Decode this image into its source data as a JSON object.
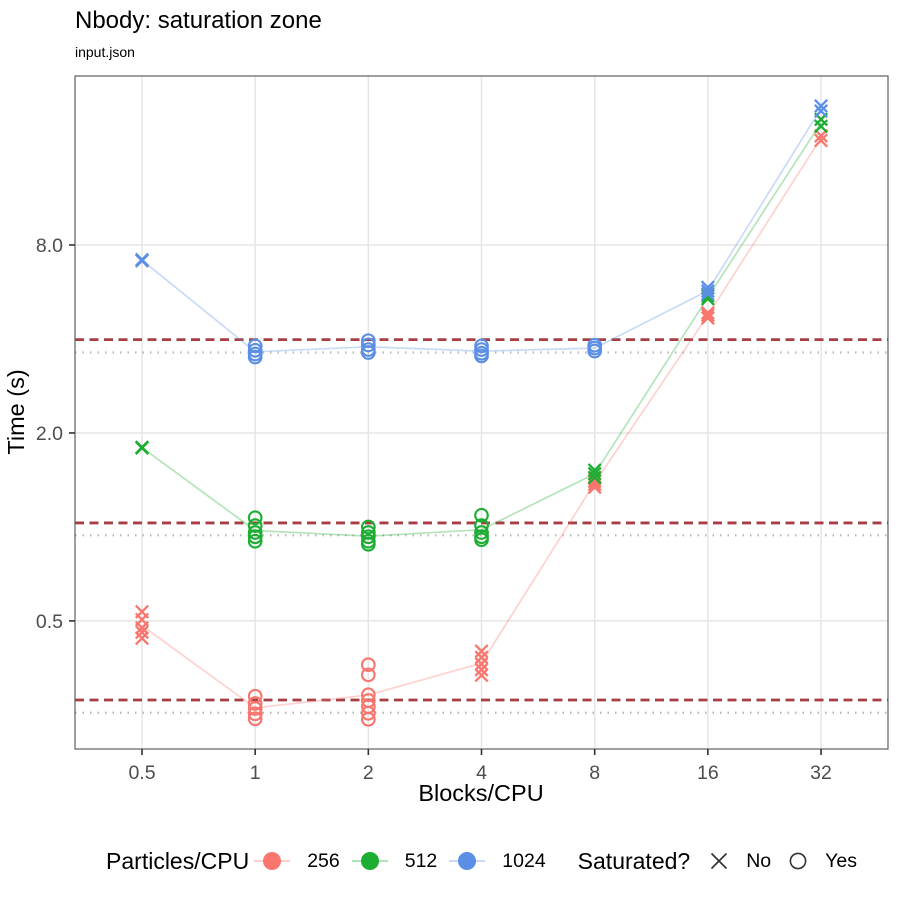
{
  "chart_data": {
    "type": "scatter",
    "title": "Nbody: saturation zone",
    "subtitle": "input.json",
    "xlabel": "Blocks/CPU",
    "ylabel": "Time (s)",
    "x_scale": "log2",
    "y_scale": "log10",
    "x_ticks": [
      0.5,
      1,
      2,
      4,
      8,
      16,
      32
    ],
    "x_tick_labels": [
      "0.5",
      "1",
      "2",
      "4",
      "8",
      "16",
      "32"
    ],
    "y_ticks": [
      0.5,
      2.0,
      8.0
    ],
    "y_tick_labels": [
      "0.5",
      "2.0",
      "8.0"
    ],
    "x_range": [
      0.33,
      48.5
    ],
    "y_range": [
      0.195,
      27.8
    ],
    "grid": "major-only",
    "legend_position": "bottom",
    "ref_line_colors": {
      "dashed": "#A63E44",
      "dotted": "#B8B8B8"
    },
    "series": [
      {
        "name": "256",
        "color": "#F8766D",
        "threshold_dashed": 0.279,
        "mean_dotted": 0.254,
        "groups": [
          {
            "x": 0.5,
            "saturated": false,
            "times": [
              0.535,
              0.505,
              0.475,
              0.46,
              0.44
            ]
          },
          {
            "x": 1,
            "saturated": true,
            "times": [
              0.287,
              0.272,
              0.262,
              0.252,
              0.243
            ]
          },
          {
            "x": 2,
            "saturated": true,
            "times": [
              0.362,
              0.336,
              0.29,
              0.278,
              0.266,
              0.253,
              0.242
            ]
          },
          {
            "x": 4,
            "saturated": false,
            "times": [
              0.4,
              0.382,
              0.364,
              0.349,
              0.335
            ]
          },
          {
            "x": 8,
            "saturated": false,
            "times": [
              1.43,
              1.4,
              1.37,
              1.34
            ]
          },
          {
            "x": 16,
            "saturated": false,
            "times": [
              4.85,
              4.77,
              4.67
            ]
          },
          {
            "x": 32,
            "saturated": false,
            "times": [
              17.9,
              17.3
            ]
          }
        ]
      },
      {
        "name": "512",
        "color": "#1CAE32",
        "threshold_dashed": 1.03,
        "mean_dotted": 0.94,
        "groups": [
          {
            "x": 0.5,
            "saturated": false,
            "times": [
              1.8,
              1.79
            ]
          },
          {
            "x": 1,
            "saturated": true,
            "times": [
              1.07,
              1.01,
              0.96,
              0.93,
              0.9
            ]
          },
          {
            "x": 2,
            "saturated": true,
            "times": [
              1.0,
              0.96,
              0.93,
              0.9,
              0.88
            ]
          },
          {
            "x": 4,
            "saturated": true,
            "times": [
              1.09,
              1.01,
              0.96,
              0.93,
              0.91
            ]
          },
          {
            "x": 8,
            "saturated": false,
            "times": [
              1.52,
              1.48,
              1.44
            ]
          },
          {
            "x": 16,
            "saturated": false,
            "times": [
              5.5,
              5.38
            ]
          },
          {
            "x": 32,
            "saturated": false,
            "times": [
              20.2,
              19.2
            ]
          }
        ]
      },
      {
        "name": "1024",
        "color": "#5B8FE6",
        "threshold_dashed": 3.98,
        "mean_dotted": 3.62,
        "groups": [
          {
            "x": 0.5,
            "saturated": false,
            "times": [
              7.18,
              7.12
            ]
          },
          {
            "x": 1,
            "saturated": true,
            "times": [
              3.8,
              3.68,
              3.58,
              3.5
            ]
          },
          {
            "x": 2,
            "saturated": true,
            "times": [
              3.95,
              3.83,
              3.7,
              3.62
            ]
          },
          {
            "x": 4,
            "saturated": true,
            "times": [
              3.8,
              3.7,
              3.6,
              3.53
            ]
          },
          {
            "x": 8,
            "saturated": true,
            "times": [
              3.82,
              3.74,
              3.66
            ]
          },
          {
            "x": 16,
            "saturated": false,
            "times": [
              5.85,
              5.7,
              5.58
            ]
          },
          {
            "x": 32,
            "saturated": false,
            "times": [
              22.3,
              21.5
            ]
          }
        ]
      }
    ],
    "legend": {
      "series_title": "Particles/CPU",
      "shape_title": "Saturated?",
      "shape_no_label": "No",
      "shape_yes_label": "Yes"
    }
  }
}
